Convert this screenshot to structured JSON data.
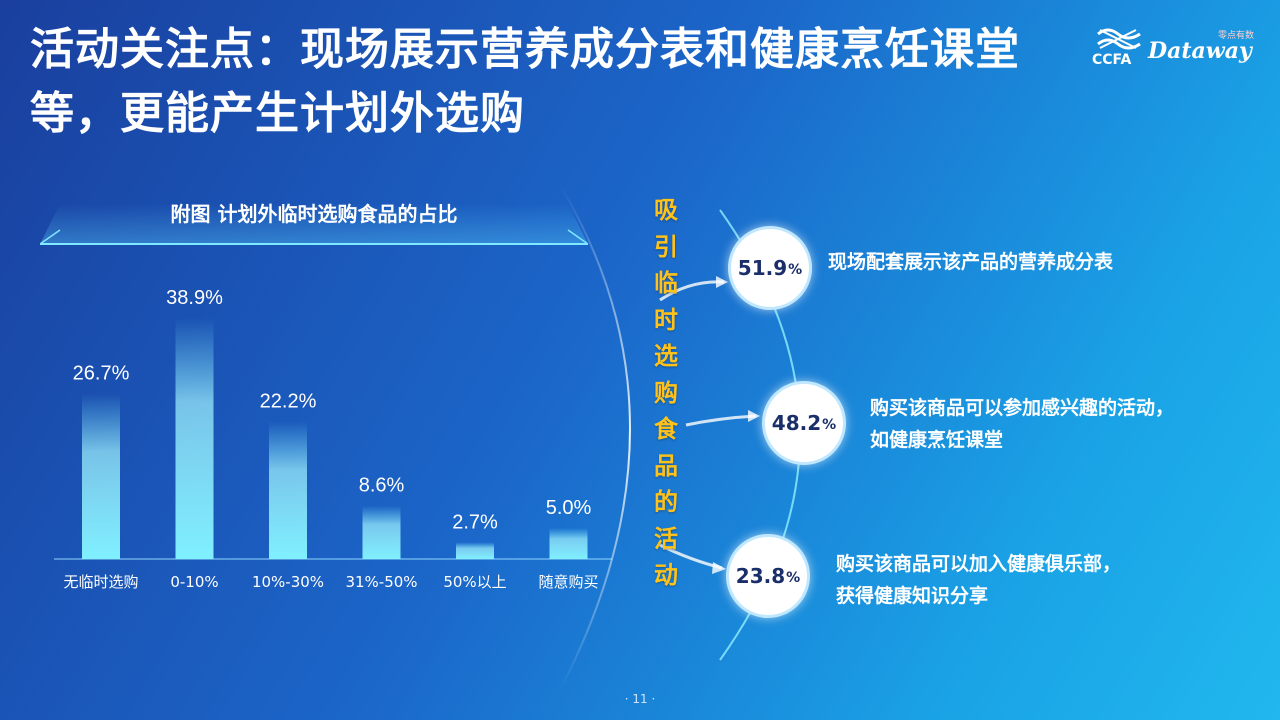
{
  "title": "活动关注点：现场展示营养成分表和健康烹饪课堂等，更能产生计划外选购",
  "logo": {
    "ccfa": "CCFA",
    "dataway": "Dataway",
    "small": "零点有数"
  },
  "figure_caption": "附图  计划外临时选购食品的占比",
  "chart_data": {
    "type": "bar",
    "title": "附图  计划外临时选购食品的占比",
    "categories": [
      "无临时选购",
      "0-10%",
      "10%-30%",
      "31%-50%",
      "50%以上",
      "随意购买"
    ],
    "values": [
      26.7,
      38.9,
      22.2,
      8.6,
      2.7,
      5.0
    ],
    "value_labels": [
      "26.7%",
      "38.9%",
      "22.2%",
      "8.6%",
      "2.7%",
      "5.0%"
    ],
    "ylim": [
      0,
      45
    ],
    "grid": false,
    "bar_color": "#7ff0ff"
  },
  "vertical_label": [
    "吸",
    "引",
    "临",
    "时",
    "选",
    "购",
    "食",
    "品",
    "的",
    "活",
    "动"
  ],
  "reasons": [
    {
      "pct": "51.9",
      "unit": "%",
      "text": [
        "现场配套展示该产品的营养成分表"
      ]
    },
    {
      "pct": "48.2",
      "unit": "%",
      "text": [
        "购买该商品可以参加感兴趣的活动，",
        "如健康烹饪课堂"
      ]
    },
    {
      "pct": "23.8",
      "unit": "%",
      "text": [
        "购买该商品可以加入健康俱乐部，",
        "获得健康知识分享"
      ]
    }
  ],
  "page_number": "· 11 ·",
  "colors": {
    "accent": "#ffc21a",
    "bar": "#7ff0ff",
    "circle_text": "#1a2f6a"
  }
}
